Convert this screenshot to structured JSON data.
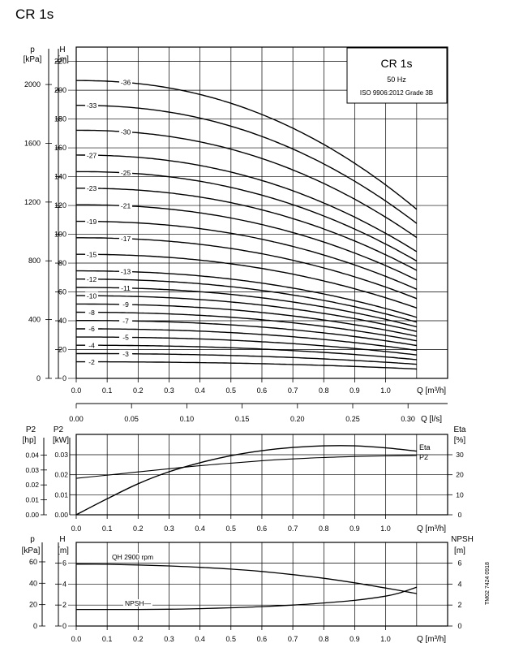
{
  "title": "CR 1s",
  "doc_code": "TM02 7424 0918",
  "chart_data": [
    {
      "type": "line",
      "id": "qh-curves",
      "legend_box": {
        "title": "CR 1s",
        "line1": "50 Hz",
        "line2": "ISO 9906:2012 Grade 3B"
      },
      "left_axis_outer": {
        "label_line1": "p",
        "label_line2": "[kPa]",
        "ticks": [
          0,
          400,
          800,
          1200,
          1600,
          2000
        ]
      },
      "left_axis_inner": {
        "label_line1": "H",
        "label_line2": "[m]",
        "ticks": [
          0,
          20,
          40,
          60,
          80,
          100,
          120,
          140,
          160,
          180,
          200,
          220
        ]
      },
      "x_axis": {
        "label": "Q [m³/h]",
        "ticks": [
          "0.0",
          "0.1",
          "0.2",
          "0.3",
          "0.4",
          "0.5",
          "0.6",
          "0.7",
          "0.8",
          "0.9",
          "1.0"
        ]
      },
      "x_axis_secondary": {
        "label": "Q [l/s]",
        "ticks": [
          "0.00",
          "0.05",
          "0.10",
          "0.15",
          "0.20",
          "0.25",
          "0.30"
        ]
      },
      "xlim": [
        0,
        1.2
      ],
      "ylim": [
        0,
        220
      ],
      "grid": true,
      "stages": [
        {
          "label": "2",
          "h0": 11.5,
          "h1": 6.5,
          "label_x": 0.05
        },
        {
          "label": "3",
          "h0": 17.2,
          "h1": 9.8,
          "label_x": 0.16
        },
        {
          "label": "4",
          "h0": 23,
          "h1": 13,
          "label_x": 0.05
        },
        {
          "label": "5",
          "h0": 28.7,
          "h1": 16.3,
          "label_x": 0.16
        },
        {
          "label": "6",
          "h0": 34.4,
          "h1": 19.5,
          "label_x": 0.05
        },
        {
          "label": "7",
          "h0": 40.2,
          "h1": 22.8,
          "label_x": 0.16
        },
        {
          "label": "8",
          "h0": 45.9,
          "h1": 26.1,
          "label_x": 0.05
        },
        {
          "label": "9",
          "h0": 51.6,
          "h1": 29.3,
          "label_x": 0.16
        },
        {
          "label": "10",
          "h0": 57.4,
          "h1": 32.6,
          "label_x": 0.05
        },
        {
          "label": "11",
          "h0": 63.1,
          "h1": 35.8,
          "label_x": 0.16
        },
        {
          "label": "12",
          "h0": 68.9,
          "h1": 39.1,
          "label_x": 0.05
        },
        {
          "label": "13",
          "h0": 74.6,
          "h1": 42.4,
          "label_x": 0.16
        },
        {
          "label": "15",
          "h0": 86.1,
          "h1": 48.9,
          "label_x": 0.05
        },
        {
          "label": "17",
          "h0": 97.6,
          "h1": 55.4,
          "label_x": 0.16
        },
        {
          "label": "19",
          "h0": 109,
          "h1": 61.9,
          "label_x": 0.05
        },
        {
          "label": "21",
          "h0": 120.5,
          "h1": 68.4,
          "label_x": 0.16
        },
        {
          "label": "23",
          "h0": 132,
          "h1": 75,
          "label_x": 0.05
        },
        {
          "label": "25",
          "h0": 143.5,
          "h1": 81.5,
          "label_x": 0.16
        },
        {
          "label": "27",
          "h0": 155,
          "h1": 88,
          "label_x": 0.05
        },
        {
          "label": "30",
          "h0": 172.2,
          "h1": 97.8,
          "label_x": 0.16
        },
        {
          "label": "33",
          "h0": 189.5,
          "h1": 107.6,
          "label_x": 0.05
        },
        {
          "label": "36",
          "h0": 206.7,
          "h1": 117.4,
          "label_x": 0.16
        }
      ]
    },
    {
      "type": "line",
      "id": "power-efficiency",
      "left_axis_outer": {
        "label_line1": "P2",
        "label_line2": "[hp]",
        "ticks": [
          "0.00",
          "0.01",
          "0.02",
          "0.03",
          "0.04"
        ]
      },
      "left_axis_inner": {
        "label_line1": "P2",
        "label_line2": "[kW]",
        "ticks": [
          "0.00",
          "0.01",
          "0.02",
          "0.03"
        ]
      },
      "right_axis": {
        "label_line1": "Eta",
        "label_line2": "[%]",
        "ticks": [
          "0",
          "10",
          "20",
          "30"
        ]
      },
      "x_axis": {
        "label": "Q [m³/h]",
        "ticks": [
          "0.0",
          "0.1",
          "0.2",
          "0.3",
          "0.4",
          "0.5",
          "0.6",
          "0.7",
          "0.8",
          "0.9",
          "1.0"
        ]
      },
      "xlim": [
        0,
        1.2
      ],
      "ylim_kw": [
        0,
        0.04
      ],
      "ylim_eta": [
        0,
        40
      ],
      "grid": true,
      "series": [
        {
          "name": "Eta",
          "x": [
            0,
            0.1,
            0.2,
            0.3,
            0.4,
            0.5,
            0.6,
            0.7,
            0.8,
            0.9,
            1.0,
            1.1
          ],
          "y": [
            0,
            8,
            15.5,
            21.5,
            26,
            29.5,
            32,
            33.6,
            34.4,
            34.4,
            33.4,
            31.8
          ]
        },
        {
          "name": "P2",
          "x": [
            0,
            0.1,
            0.2,
            0.3,
            0.4,
            0.5,
            0.6,
            0.7,
            0.8,
            0.9,
            1.0,
            1.1
          ],
          "y": [
            0.0182,
            0.0198,
            0.0214,
            0.023,
            0.0245,
            0.0258,
            0.027,
            0.0279,
            0.0286,
            0.0291,
            0.0294,
            0.0296
          ]
        }
      ]
    },
    {
      "type": "line",
      "id": "npsh",
      "left_axis_outer": {
        "label_line1": "p",
        "label_line2": "[kPa]",
        "ticks": [
          "0",
          "20",
          "40",
          "60"
        ]
      },
      "left_axis_inner": {
        "label_line1": "H",
        "label_line2": "[m]",
        "ticks": [
          "0",
          "2",
          "4",
          "6"
        ]
      },
      "right_axis": {
        "label_line1": "NPSH",
        "label_line2": "[m]",
        "ticks": [
          "0",
          "2",
          "4",
          "6"
        ]
      },
      "x_axis": {
        "label": "Q [m³/h]",
        "ticks": [
          "0.0",
          "0.1",
          "0.2",
          "0.3",
          "0.4",
          "0.5",
          "0.6",
          "0.7",
          "0.8",
          "0.9",
          "1.0"
        ]
      },
      "xlim": [
        0,
        1.2
      ],
      "ylim": [
        0,
        8
      ],
      "grid": true,
      "series": [
        {
          "name": "QH 2900 rpm",
          "x": [
            0,
            0.1,
            0.2,
            0.3,
            0.4,
            0.5,
            0.6,
            0.7,
            0.8,
            0.9,
            1.0,
            1.1
          ],
          "y": [
            5.9,
            5.88,
            5.82,
            5.73,
            5.6,
            5.43,
            5.2,
            4.9,
            4.55,
            4.12,
            3.62,
            3.1
          ]
        },
        {
          "name": "NPSH",
          "x": [
            0,
            0.1,
            0.2,
            0.3,
            0.4,
            0.5,
            0.6,
            0.7,
            0.8,
            0.9,
            1.0,
            1.05,
            1.1
          ],
          "y": [
            1.58,
            1.58,
            1.58,
            1.6,
            1.66,
            1.74,
            1.85,
            2,
            2.2,
            2.45,
            2.85,
            3.2,
            3.7
          ]
        }
      ]
    }
  ]
}
